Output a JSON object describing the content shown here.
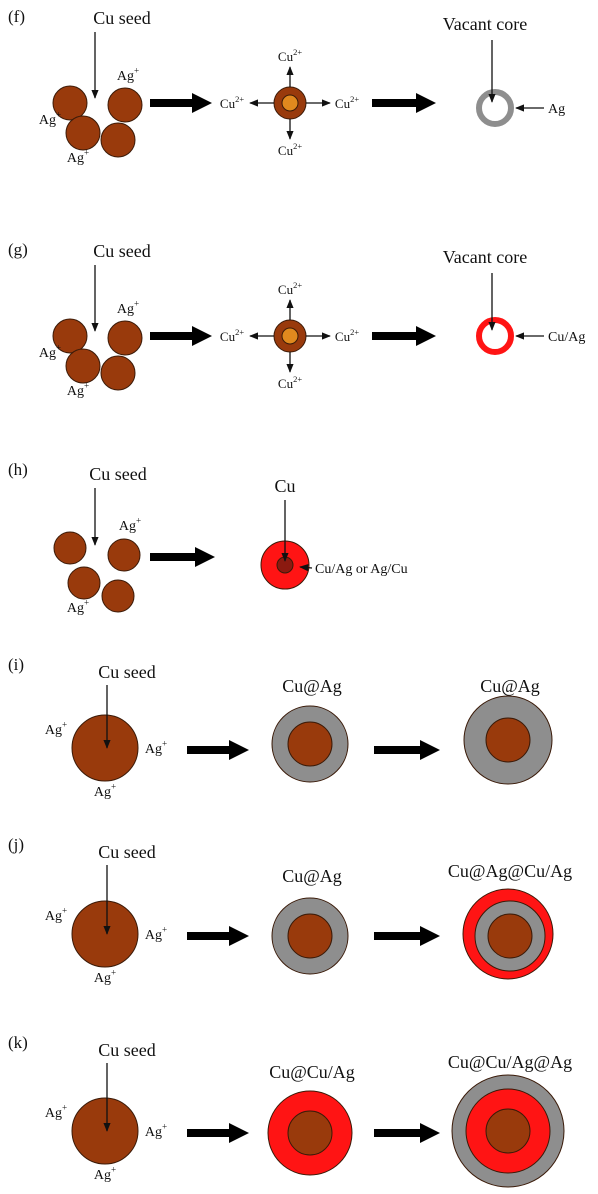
{
  "panels": [
    {
      "label": "(f)",
      "seed_label": "Cu seed",
      "ions": [
        {
          "base": "Ag",
          "sup": "+"
        },
        {
          "base": "Ag",
          "sup": "+"
        },
        {
          "base": "Ag",
          "sup": "+"
        }
      ],
      "intermediate_ions": [
        {
          "base": "Cu",
          "sup": "2+"
        },
        {
          "base": "Cu",
          "sup": "2+"
        },
        {
          "base": "Cu",
          "sup": "2+"
        },
        {
          "base": "Cu",
          "sup": "2+"
        }
      ],
      "product_title": "Vacant core",
      "product_note": "Ag"
    },
    {
      "label": "(g)",
      "seed_label": "Cu seed",
      "ions": [
        {
          "base": "Ag",
          "sup": "+"
        },
        {
          "base": "Ag",
          "sup": "+"
        },
        {
          "base": "Ag",
          "sup": "+"
        }
      ],
      "intermediate_ions": [
        {
          "base": "Cu",
          "sup": "2+"
        },
        {
          "base": "Cu",
          "sup": "2+"
        },
        {
          "base": "Cu",
          "sup": "2+"
        },
        {
          "base": "Cu",
          "sup": "2+"
        }
      ],
      "product_title": "Vacant core",
      "product_note": "Cu/Ag"
    },
    {
      "label": "(h)",
      "seed_label": "Cu seed",
      "ions": [
        {
          "base": "Ag",
          "sup": "+"
        },
        {
          "base": "Ag",
          "sup": "+"
        }
      ],
      "product_title": "Cu",
      "product_note": "Cu/Ag or Ag/Cu"
    },
    {
      "label": "(i)",
      "seed_label": "Cu seed",
      "ions": [
        {
          "base": "Ag",
          "sup": "+"
        },
        {
          "base": "Ag",
          "sup": "+"
        },
        {
          "base": "Ag",
          "sup": "+"
        }
      ],
      "stage1": "Cu@Ag",
      "stage2": "Cu@Ag"
    },
    {
      "label": "(j)",
      "seed_label": "Cu seed",
      "ions": [
        {
          "base": "Ag",
          "sup": "+"
        },
        {
          "base": "Ag",
          "sup": "+"
        },
        {
          "base": "Ag",
          "sup": "+"
        }
      ],
      "stage1": "Cu@Ag",
      "stage2": "Cu@Ag@Cu/Ag"
    },
    {
      "label": "(k)",
      "seed_label": "Cu seed",
      "ions": [
        {
          "base": "Ag",
          "sup": "+"
        },
        {
          "base": "Ag",
          "sup": "+"
        },
        {
          "base": "Ag",
          "sup": "+"
        }
      ],
      "stage1": "Cu@Cu/Ag",
      "stage2": "Cu@Cu/Ag@Ag"
    }
  ]
}
